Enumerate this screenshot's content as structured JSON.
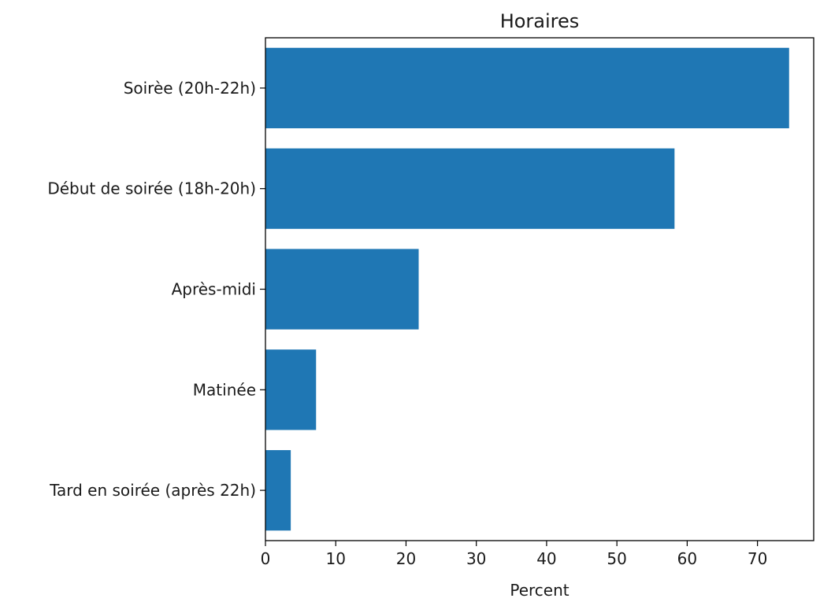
{
  "chart_data": {
    "type": "bar",
    "orientation": "horizontal",
    "title": "Horaires",
    "xlabel": "Percent",
    "ylabel": "",
    "categories": [
      "Soirèe (20h-22h)",
      "Début de soirée (18h-20h)",
      "Après-midi",
      "Matinée",
      "Tard en soirée (après 22h)"
    ],
    "values": [
      74.5,
      58.2,
      21.8,
      7.2,
      3.6
    ],
    "xlim": [
      0,
      78
    ],
    "xticks": [
      0,
      10,
      20,
      30,
      40,
      50,
      60,
      70
    ],
    "grid": false,
    "legend": "none",
    "bar_color": "#1f77b4"
  }
}
